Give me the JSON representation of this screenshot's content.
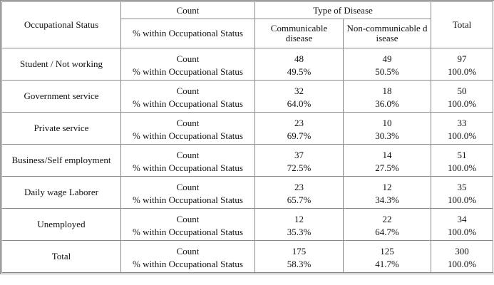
{
  "header": {
    "row_label": "Occupational Status",
    "count_label": "Count",
    "pct_label": "% within Occupational Status",
    "group_title": "Type of Disease",
    "columns": [
      "Communicable disease",
      "Non-communicable disease"
    ],
    "total": "Total"
  },
  "rows": [
    {
      "label": "Student / Not working",
      "count_label": "Count",
      "pct_label": "% within Occupational Status",
      "counts": [
        48,
        49,
        97
      ],
      "pcts": [
        "49.5%",
        "50.5%",
        "100.0%"
      ]
    },
    {
      "label": "Government service",
      "count_label": "Count",
      "pct_label": "% within Occupational Status",
      "counts": [
        32,
        18,
        50
      ],
      "pcts": [
        "64.0%",
        "36.0%",
        "100.0%"
      ]
    },
    {
      "label": "Private service",
      "count_label": "Count",
      "pct_label": "% within Occupational Status",
      "counts": [
        23,
        10,
        33
      ],
      "pcts": [
        "69.7%",
        "30.3%",
        "100.0%"
      ]
    },
    {
      "label": "Business/Self employment",
      "count_label": "Count",
      "pct_label": "% within Occupational Status",
      "counts": [
        37,
        14,
        51
      ],
      "pcts": [
        "72.5%",
        "27.5%",
        "100.0%"
      ]
    },
    {
      "label": "Daily wage Laborer",
      "count_label": "Count",
      "pct_label": "% within Occupational Status",
      "counts": [
        23,
        12,
        35
      ],
      "pcts": [
        "65.7%",
        "34.3%",
        "100.0%"
      ]
    },
    {
      "label": "Unemployed",
      "count_label": "Count",
      "pct_label": "% within Occupational Status",
      "counts": [
        12,
        22,
        34
      ],
      "pcts": [
        "35.3%",
        "64.7%",
        "100.0%"
      ]
    },
    {
      "label": "Total",
      "count_label": "Count",
      "pct_label": "% within Occupational Status",
      "counts": [
        175,
        125,
        300
      ],
      "pcts": [
        "58.3%",
        "41.7%",
        "100.0%"
      ]
    }
  ]
}
